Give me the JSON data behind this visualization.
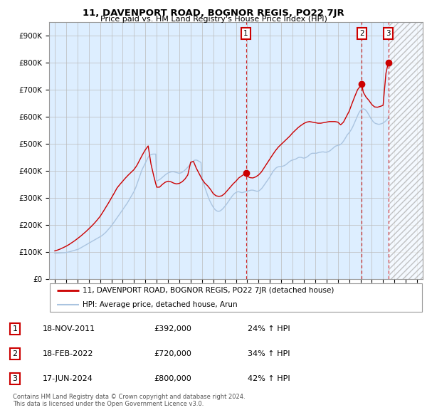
{
  "title": "11, DAVENPORT ROAD, BOGNOR REGIS, PO22 7JR",
  "subtitle": "Price paid vs. HM Land Registry's House Price Index (HPI)",
  "hpi_color": "#aac4e0",
  "price_color": "#cc0000",
  "bg_fill_color": "#ddeeff",
  "grid_color": "#bbbbbb",
  "legend_label_price": "11, DAVENPORT ROAD, BOGNOR REGIS, PO22 7JR (detached house)",
  "legend_label_hpi": "HPI: Average price, detached house, Arun",
  "ylim": [
    0,
    950000
  ],
  "yticks": [
    0,
    100000,
    200000,
    300000,
    400000,
    500000,
    600000,
    700000,
    800000,
    900000
  ],
  "ytick_labels": [
    "£0",
    "£100K",
    "£200K",
    "£300K",
    "£400K",
    "£500K",
    "£600K",
    "£700K",
    "£800K",
    "£900K"
  ],
  "xlim": [
    1994.5,
    2027.5
  ],
  "xticks": [
    1995,
    1996,
    1997,
    1998,
    1999,
    2000,
    2001,
    2002,
    2003,
    2004,
    2005,
    2006,
    2007,
    2008,
    2009,
    2010,
    2011,
    2012,
    2013,
    2014,
    2015,
    2016,
    2017,
    2018,
    2019,
    2020,
    2021,
    2022,
    2023,
    2024,
    2025,
    2026,
    2027
  ],
  "sales": [
    {
      "label": "1",
      "date_x": 2011.88,
      "price": 392000
    },
    {
      "label": "2",
      "date_x": 2022.12,
      "price": 720000
    },
    {
      "label": "3",
      "date_x": 2024.46,
      "price": 800000
    }
  ],
  "hatch_start": 2024.5,
  "footer_line1": "Contains HM Land Registry data © Crown copyright and database right 2024.",
  "footer_line2": "This data is licensed under the Open Government Licence v3.0.",
  "sale_table": [
    {
      "label": "1",
      "date": "18-NOV-2011",
      "price": "£392,000",
      "pct": "24% ↑ HPI"
    },
    {
      "label": "2",
      "date": "18-FEB-2022",
      "price": "£720,000",
      "pct": "34% ↑ HPI"
    },
    {
      "label": "3",
      "date": "17-JUN-2024",
      "price": "£800,000",
      "pct": "42% ↑ HPI"
    }
  ],
  "hpi_years": [
    1995.0,
    1995.083,
    1995.167,
    1995.25,
    1995.333,
    1995.417,
    1995.5,
    1995.583,
    1995.667,
    1995.75,
    1995.833,
    1995.917,
    1996.0,
    1996.083,
    1996.167,
    1996.25,
    1996.333,
    1996.417,
    1996.5,
    1996.583,
    1996.667,
    1996.75,
    1996.833,
    1996.917,
    1997.0,
    1997.083,
    1997.167,
    1997.25,
    1997.333,
    1997.417,
    1997.5,
    1997.583,
    1997.667,
    1997.75,
    1997.833,
    1997.917,
    1998.0,
    1998.083,
    1998.167,
    1998.25,
    1998.333,
    1998.417,
    1998.5,
    1998.583,
    1998.667,
    1998.75,
    1998.833,
    1998.917,
    1999.0,
    1999.083,
    1999.167,
    1999.25,
    1999.333,
    1999.417,
    1999.5,
    1999.583,
    1999.667,
    1999.75,
    1999.833,
    1999.917,
    2000.0,
    2000.083,
    2000.167,
    2000.25,
    2000.333,
    2000.417,
    2000.5,
    2000.583,
    2000.667,
    2000.75,
    2000.833,
    2000.917,
    2001.0,
    2001.083,
    2001.167,
    2001.25,
    2001.333,
    2001.417,
    2001.5,
    2001.583,
    2001.667,
    2001.75,
    2001.833,
    2001.917,
    2002.0,
    2002.083,
    2002.167,
    2002.25,
    2002.333,
    2002.417,
    2002.5,
    2002.583,
    2002.667,
    2002.75,
    2002.833,
    2002.917,
    2003.0,
    2003.083,
    2003.167,
    2003.25,
    2003.333,
    2003.417,
    2003.5,
    2003.583,
    2003.667,
    2003.75,
    2003.833,
    2003.917,
    2004.0,
    2004.083,
    2004.167,
    2004.25,
    2004.333,
    2004.417,
    2004.5,
    2004.583,
    2004.667,
    2004.75,
    2004.833,
    2004.917,
    2005.0,
    2005.083,
    2005.167,
    2005.25,
    2005.333,
    2005.417,
    2005.5,
    2005.583,
    2005.667,
    2005.75,
    2005.833,
    2005.917,
    2006.0,
    2006.083,
    2006.167,
    2006.25,
    2006.333,
    2006.417,
    2006.5,
    2006.583,
    2006.667,
    2006.75,
    2006.833,
    2006.917,
    2007.0,
    2007.083,
    2007.167,
    2007.25,
    2007.333,
    2007.417,
    2007.5,
    2007.583,
    2007.667,
    2007.75,
    2007.833,
    2007.917,
    2008.0,
    2008.083,
    2008.167,
    2008.25,
    2008.333,
    2008.417,
    2008.5,
    2008.583,
    2008.667,
    2008.75,
    2008.833,
    2008.917,
    2009.0,
    2009.083,
    2009.167,
    2009.25,
    2009.333,
    2009.417,
    2009.5,
    2009.583,
    2009.667,
    2009.75,
    2009.833,
    2009.917,
    2010.0,
    2010.083,
    2010.167,
    2010.25,
    2010.333,
    2010.417,
    2010.5,
    2010.583,
    2010.667,
    2010.75,
    2010.833,
    2010.917,
    2011.0,
    2011.083,
    2011.167,
    2011.25,
    2011.333,
    2011.417,
    2011.5,
    2011.583,
    2011.667,
    2011.75,
    2011.833,
    2011.917,
    2012.0,
    2012.083,
    2012.167,
    2012.25,
    2012.333,
    2012.417,
    2012.5,
    2012.583,
    2012.667,
    2012.75,
    2012.833,
    2012.917,
    2013.0,
    2013.083,
    2013.167,
    2013.25,
    2013.333,
    2013.417,
    2013.5,
    2013.583,
    2013.667,
    2013.75,
    2013.833,
    2013.917,
    2014.0,
    2014.083,
    2014.167,
    2014.25,
    2014.333,
    2014.417,
    2014.5,
    2014.583,
    2014.667,
    2014.75,
    2014.833,
    2014.917,
    2015.0,
    2015.083,
    2015.167,
    2015.25,
    2015.333,
    2015.417,
    2015.5,
    2015.583,
    2015.667,
    2015.75,
    2015.833,
    2015.917,
    2016.0,
    2016.083,
    2016.167,
    2016.25,
    2016.333,
    2016.417,
    2016.5,
    2016.583,
    2016.667,
    2016.75,
    2016.833,
    2016.917,
    2017.0,
    2017.083,
    2017.167,
    2017.25,
    2017.333,
    2017.417,
    2017.5,
    2017.583,
    2017.667,
    2017.75,
    2017.833,
    2017.917,
    2018.0,
    2018.083,
    2018.167,
    2018.25,
    2018.333,
    2018.417,
    2018.5,
    2018.583,
    2018.667,
    2018.75,
    2018.833,
    2018.917,
    2019.0,
    2019.083,
    2019.167,
    2019.25,
    2019.333,
    2019.417,
    2019.5,
    2019.583,
    2019.667,
    2019.75,
    2019.833,
    2019.917,
    2020.0,
    2020.083,
    2020.167,
    2020.25,
    2020.333,
    2020.417,
    2020.5,
    2020.583,
    2020.667,
    2020.75,
    2020.833,
    2020.917,
    2021.0,
    2021.083,
    2021.167,
    2021.25,
    2021.333,
    2021.417,
    2021.5,
    2021.583,
    2021.667,
    2021.75,
    2021.833,
    2021.917,
    2022.0,
    2022.083,
    2022.167,
    2022.25,
    2022.333,
    2022.417,
    2022.5,
    2022.583,
    2022.667,
    2022.75,
    2022.833,
    2022.917,
    2023.0,
    2023.083,
    2023.167,
    2023.25,
    2023.333,
    2023.417,
    2023.5,
    2023.583,
    2023.667,
    2023.75,
    2023.833,
    2023.917,
    2024.0,
    2024.083,
    2024.167,
    2024.25,
    2024.333,
    2024.417,
    2024.5
  ],
  "hpi_values": [
    96000,
    96200,
    96500,
    96800,
    97000,
    97200,
    97500,
    97700,
    97800,
    98000,
    98200,
    98400,
    99000,
    99500,
    100000,
    101000,
    102000,
    103000,
    104000,
    105000,
    106000,
    107000,
    108000,
    109000,
    110000,
    111000,
    113000,
    115000,
    117000,
    119000,
    121000,
    123000,
    125000,
    127000,
    129000,
    131000,
    133000,
    135000,
    137000,
    139000,
    141000,
    143000,
    145000,
    147000,
    149000,
    151000,
    153000,
    155000,
    157000,
    159000,
    161000,
    164000,
    167000,
    170000,
    173000,
    177000,
    181000,
    185000,
    189000,
    193000,
    197000,
    202000,
    207000,
    212000,
    217000,
    222000,
    227000,
    232000,
    237000,
    242000,
    247000,
    252000,
    257000,
    262000,
    267000,
    272000,
    277000,
    282000,
    288000,
    294000,
    300000,
    306000,
    312000,
    318000,
    324000,
    332000,
    340000,
    350000,
    360000,
    370000,
    380000,
    390000,
    400000,
    408000,
    415000,
    422000,
    429000,
    436000,
    443000,
    450000,
    455000,
    458000,
    460000,
    461000,
    462000,
    462000,
    462000,
    462000,
    363000,
    364000,
    366000,
    368000,
    370000,
    373000,
    376000,
    379000,
    382000,
    385000,
    388000,
    390000,
    392000,
    394000,
    395000,
    396000,
    397000,
    397000,
    397000,
    396000,
    395000,
    394000,
    393000,
    392000,
    391000,
    392000,
    393000,
    395000,
    397000,
    400000,
    403000,
    406000,
    410000,
    414000,
    418000,
    422000,
    426000,
    430000,
    434000,
    437000,
    439000,
    440000,
    440000,
    439000,
    437000,
    435000,
    433000,
    431000,
    370000,
    360000,
    350000,
    340000,
    330000,
    320000,
    310000,
    300000,
    292000,
    285000,
    278000,
    272000,
    266000,
    261000,
    257000,
    254000,
    252000,
    251000,
    251000,
    252000,
    254000,
    257000,
    260000,
    264000,
    268000,
    272000,
    277000,
    282000,
    287000,
    292000,
    297000,
    302000,
    307000,
    311000,
    315000,
    318000,
    320000,
    322000,
    323000,
    323000,
    322000,
    321000,
    320000,
    320000,
    321000,
    322000,
    323000,
    324000,
    325000,
    326000,
    327000,
    328000,
    329000,
    329000,
    329000,
    328000,
    327000,
    326000,
    325000,
    325000,
    326000,
    328000,
    331000,
    334000,
    338000,
    343000,
    348000,
    353000,
    358000,
    363000,
    368000,
    373000,
    378000,
    384000,
    390000,
    396000,
    401000,
    405000,
    409000,
    412000,
    414000,
    415000,
    416000,
    416000,
    416000,
    417000,
    418000,
    419000,
    421000,
    423000,
    426000,
    429000,
    432000,
    435000,
    437000,
    439000,
    440000,
    441000,
    442000,
    443000,
    445000,
    447000,
    449000,
    450000,
    450000,
    450000,
    449000,
    448000,
    447000,
    448000,
    449000,
    451000,
    453000,
    456000,
    459000,
    462000,
    464000,
    465000,
    465000,
    465000,
    465000,
    465000,
    466000,
    467000,
    468000,
    469000,
    469000,
    470000,
    470000,
    470000,
    469000,
    469000,
    469000,
    470000,
    471000,
    473000,
    475000,
    478000,
    481000,
    484000,
    487000,
    490000,
    492000,
    493000,
    494000,
    495000,
    496000,
    498000,
    501000,
    505000,
    510000,
    515000,
    521000,
    527000,
    533000,
    537000,
    541000,
    546000,
    551000,
    557000,
    564000,
    572000,
    580000,
    588000,
    596000,
    604000,
    612000,
    618000,
    623000,
    626000,
    628000,
    629000,
    628000,
    626000,
    622000,
    618000,
    612000,
    606000,
    600000,
    594000,
    589000,
    584000,
    580000,
    577000,
    575000,
    574000,
    573000,
    572000,
    572000,
    573000,
    574000,
    575000,
    577000,
    579000,
    582000,
    585000,
    589000,
    593000,
    597000
  ],
  "price_years": [
    1995.0,
    1995.25,
    1995.5,
    1995.75,
    1996.0,
    1996.25,
    1996.5,
    1996.75,
    1997.0,
    1997.25,
    1997.5,
    1997.75,
    1998.0,
    1998.25,
    1998.5,
    1998.75,
    1999.0,
    1999.25,
    1999.5,
    1999.75,
    2000.0,
    2000.25,
    2000.5,
    2000.75,
    2001.0,
    2001.25,
    2001.5,
    2001.75,
    2002.0,
    2002.25,
    2002.5,
    2002.75,
    2003.0,
    2003.25,
    2003.5,
    2003.75,
    2004.0,
    2004.25,
    2004.5,
    2004.75,
    2005.0,
    2005.25,
    2005.5,
    2005.75,
    2006.0,
    2006.25,
    2006.5,
    2006.75,
    2007.0,
    2007.25,
    2007.5,
    2007.75,
    2008.0,
    2008.25,
    2008.5,
    2008.75,
    2009.0,
    2009.25,
    2009.5,
    2009.75,
    2010.0,
    2010.25,
    2010.5,
    2010.75,
    2011.0,
    2011.25,
    2011.88,
    2012.0,
    2012.25,
    2012.5,
    2012.75,
    2013.0,
    2013.25,
    2013.5,
    2013.75,
    2014.0,
    2014.25,
    2014.5,
    2014.75,
    2015.0,
    2015.25,
    2015.5,
    2015.75,
    2016.0,
    2016.25,
    2016.5,
    2016.75,
    2017.0,
    2017.25,
    2017.5,
    2017.75,
    2018.0,
    2018.25,
    2018.5,
    2018.75,
    2019.0,
    2019.25,
    2019.5,
    2019.75,
    2020.0,
    2020.25,
    2020.5,
    2020.75,
    2021.0,
    2021.25,
    2021.5,
    2021.75,
    2022.12,
    2022.25,
    2022.5,
    2022.75,
    2023.0,
    2023.25,
    2023.5,
    2023.75,
    2024.0,
    2024.25,
    2024.46
  ],
  "price_values": [
    105000,
    108000,
    112000,
    117000,
    122000,
    128000,
    135000,
    142000,
    150000,
    158000,
    167000,
    176000,
    186000,
    196000,
    207000,
    219000,
    232000,
    248000,
    265000,
    282000,
    300000,
    318000,
    337000,
    350000,
    362000,
    374000,
    385000,
    395000,
    405000,
    420000,
    440000,
    460000,
    478000,
    492000,
    425000,
    380000,
    340000,
    340000,
    350000,
    358000,
    362000,
    360000,
    355000,
    352000,
    354000,
    360000,
    370000,
    385000,
    432000,
    435000,
    410000,
    390000,
    370000,
    355000,
    345000,
    332000,
    316000,
    308000,
    306000,
    308000,
    316000,
    328000,
    340000,
    352000,
    362000,
    374000,
    392000,
    380000,
    375000,
    374000,
    378000,
    385000,
    396000,
    412000,
    428000,
    444000,
    460000,
    475000,
    488000,
    498000,
    508000,
    518000,
    528000,
    540000,
    550000,
    560000,
    568000,
    575000,
    580000,
    582000,
    580000,
    578000,
    576000,
    576000,
    578000,
    580000,
    582000,
    582000,
    582000,
    580000,
    570000,
    580000,
    600000,
    620000,
    648000,
    675000,
    700000,
    720000,
    690000,
    672000,
    660000,
    645000,
    636000,
    635000,
    638000,
    642000,
    760000,
    800000
  ]
}
